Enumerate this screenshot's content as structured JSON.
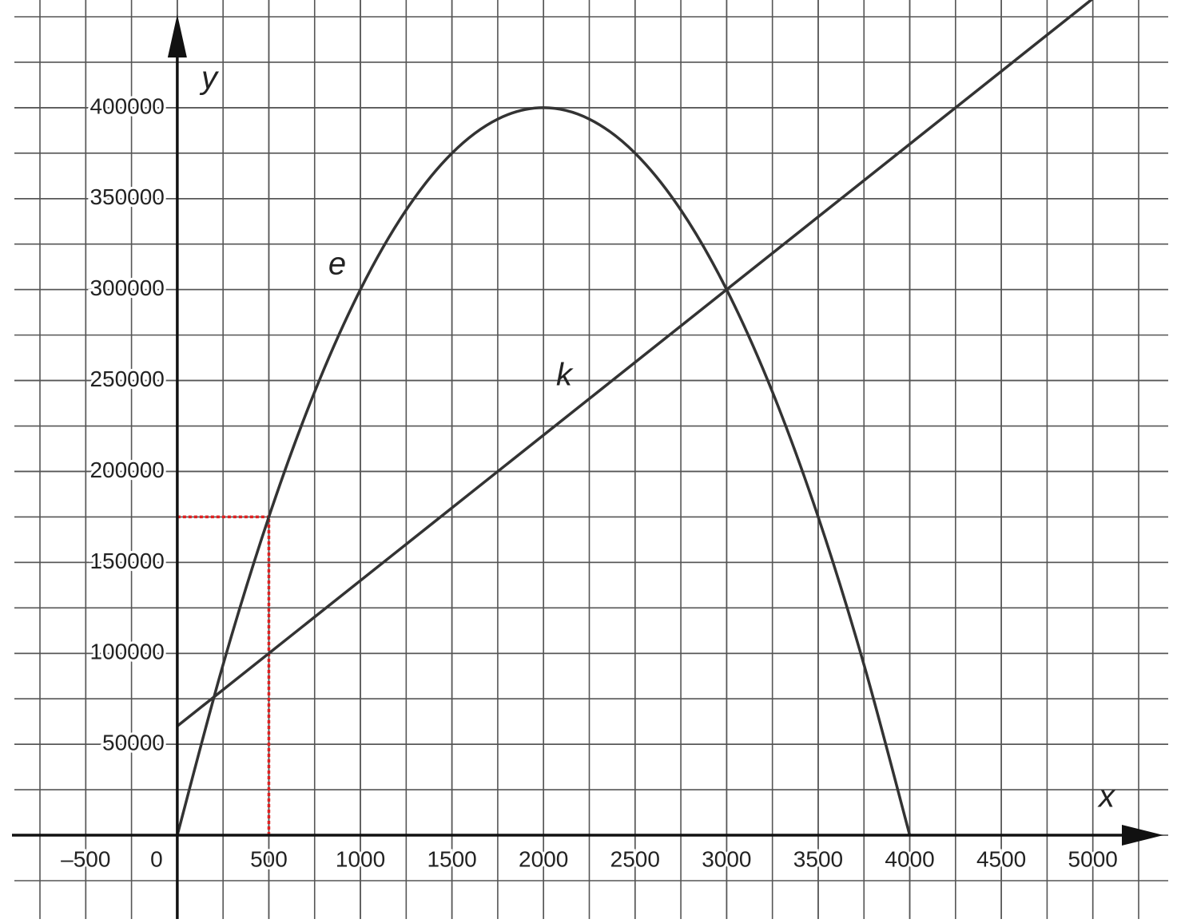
{
  "chart_data": {
    "type": "line",
    "x_label": "x",
    "y_label": "y",
    "xlim": [
      -750,
      5250
    ],
    "ylim": [
      -25000,
      450000
    ],
    "xticks": [
      {
        "value": -500,
        "label": "–500"
      },
      0,
      500,
      1000,
      1500,
      2000,
      2500,
      3000,
      3500,
      4000,
      4500,
      5000
    ],
    "yticks": [
      50000,
      100000,
      150000,
      200000,
      250000,
      300000,
      350000,
      400000
    ],
    "grid": true,
    "series": [
      {
        "name": "e",
        "color": "#333333",
        "smooth": true,
        "x": [
          0,
          250,
          500,
          750,
          1000,
          1250,
          1500,
          1750,
          2000,
          2250,
          2500,
          2750,
          3000,
          3250,
          3500,
          3750,
          4000
        ],
        "values": [
          0,
          93750,
          175000,
          243750,
          300000,
          343750,
          375000,
          393750,
          400000,
          393750,
          375000,
          343750,
          300000,
          243750,
          175000,
          93750,
          0
        ]
      },
      {
        "name": "k",
        "color": "#333333",
        "smooth": false,
        "x": [
          0,
          5000
        ],
        "values": [
          60000,
          460000
        ]
      }
    ],
    "guides": [
      {
        "x": 500,
        "y": 175000,
        "color": "#e02020"
      }
    ]
  }
}
